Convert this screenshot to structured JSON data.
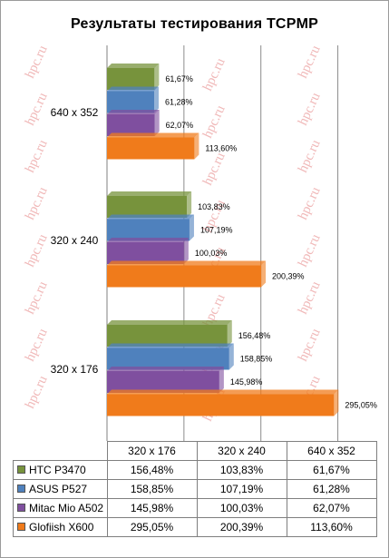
{
  "watermark": "hpc.ru",
  "chart_data": {
    "type": "bar",
    "orientation": "horizontal",
    "title": "Результаты тестирования  TCPMP",
    "categories": [
      "640 x 352",
      "320 x 240",
      "320 x 176"
    ],
    "xlim": [
      0,
      350
    ],
    "grid": true,
    "series": [
      {
        "name": "HTC P3470",
        "color": "#77933c",
        "values": [
          61.67,
          103.83,
          156.48
        ],
        "labels": [
          "61,67%",
          "103,83%",
          "156,48%"
        ]
      },
      {
        "name": "ASUS P527",
        "color": "#4f81bd",
        "values": [
          61.28,
          107.19,
          158.85
        ],
        "labels": [
          "61,28%",
          "107,19%",
          "158,85%"
        ]
      },
      {
        "name": "Mitac Mio A502",
        "color": "#7f4f9f",
        "values": [
          62.07,
          100.03,
          145.98
        ],
        "labels": [
          "62,07%",
          "100,03%",
          "145,98%"
        ]
      },
      {
        "name": "Glofiish X600",
        "color": "#f07b1b",
        "values": [
          113.6,
          200.39,
          295.05
        ],
        "labels": [
          "113,60%",
          "200,39%",
          "295,05%"
        ]
      }
    ]
  },
  "table": {
    "columns": [
      "320 x 176",
      "320 x 240",
      "640 x 352"
    ],
    "rows": [
      {
        "series": "HTC P3470",
        "cells": [
          "156,48%",
          "103,83%",
          "61,67%"
        ]
      },
      {
        "series": "ASUS P527",
        "cells": [
          "158,85%",
          "107,19%",
          "61,28%"
        ]
      },
      {
        "series": "Mitac Mio A502",
        "cells": [
          "145,98%",
          "100,03%",
          "62,07%"
        ]
      },
      {
        "series": "Glofiish X600",
        "cells": [
          "295,05%",
          "200,39%",
          "113,60%"
        ]
      }
    ]
  }
}
